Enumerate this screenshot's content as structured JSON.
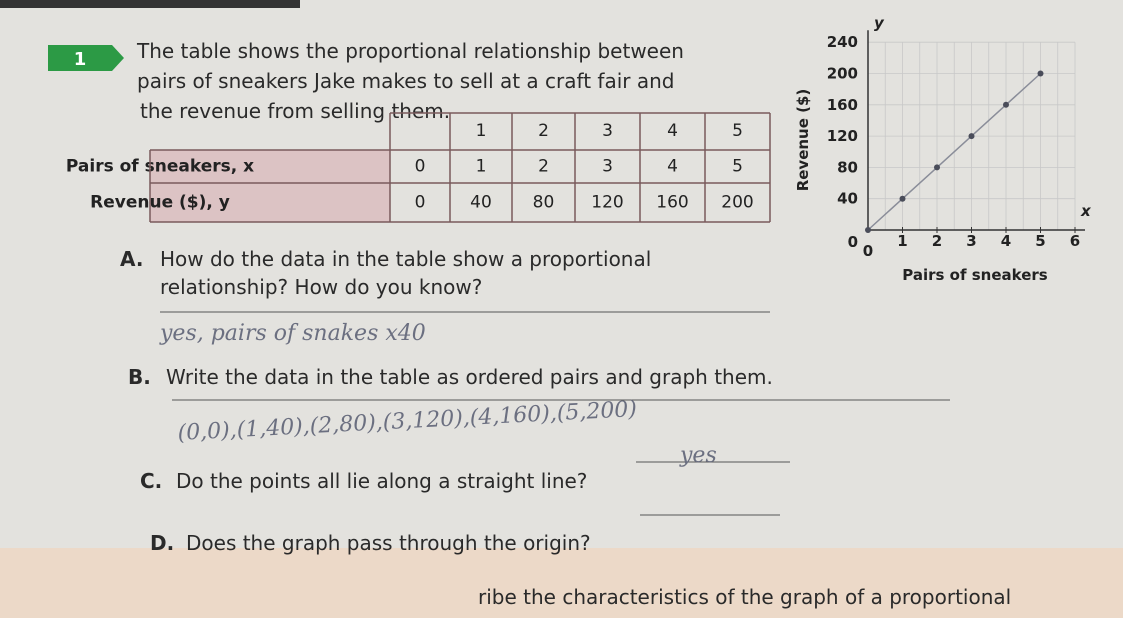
{
  "problem": {
    "number": "1",
    "lines": [
      "The table shows the proportional relationship between",
      "pairs of sneakers Jake makes to sell at a craft fair and",
      "the revenue from selling them."
    ]
  },
  "table": {
    "top_row": [
      "1",
      "2",
      "3",
      "4",
      "5"
    ],
    "rows": [
      [
        "Pairs of sneakers, x",
        "0",
        "1",
        "2",
        "3",
        "4",
        "5"
      ],
      [
        "Revenue ($), y",
        "0",
        "40",
        "80",
        "120",
        "160",
        "200"
      ]
    ]
  },
  "questions": [
    {
      "label": "A.",
      "lines": [
        "How do the data in the table show a proportional",
        "relationship? How do you know?"
      ],
      "answer": "yes, pairs of snakes x40"
    },
    {
      "label": "B.",
      "lines": [
        "Write the data in the table as ordered pairs and graph them."
      ],
      "answer": "(0,0),(1,40),(2,80),(3,120),(4,160),(5,200)"
    },
    {
      "label": "C.",
      "lines": [
        "Do the points all lie along a straight line?"
      ],
      "answer": "yes"
    },
    {
      "label": "D.",
      "lines": [
        "Does the graph pass through the origin?"
      ]
    }
  ],
  "graph": {
    "y_label": "Revenue ($)",
    "x_label": "Pairs of sneakers",
    "y_name": "y",
    "x_name": "x",
    "xlim": [
      0,
      6
    ],
    "ylim": [
      0,
      240
    ],
    "xticks": [
      0,
      1,
      2,
      3,
      4,
      5,
      6
    ],
    "yticks": [
      0,
      40,
      80,
      120,
      160,
      200,
      240
    ],
    "points": {
      "x": [
        0,
        1,
        2,
        3,
        4,
        5
      ],
      "y": [
        0,
        40,
        80,
        120,
        160,
        200
      ]
    }
  },
  "footer": "ribe the characteristics of the graph of a proportional"
}
